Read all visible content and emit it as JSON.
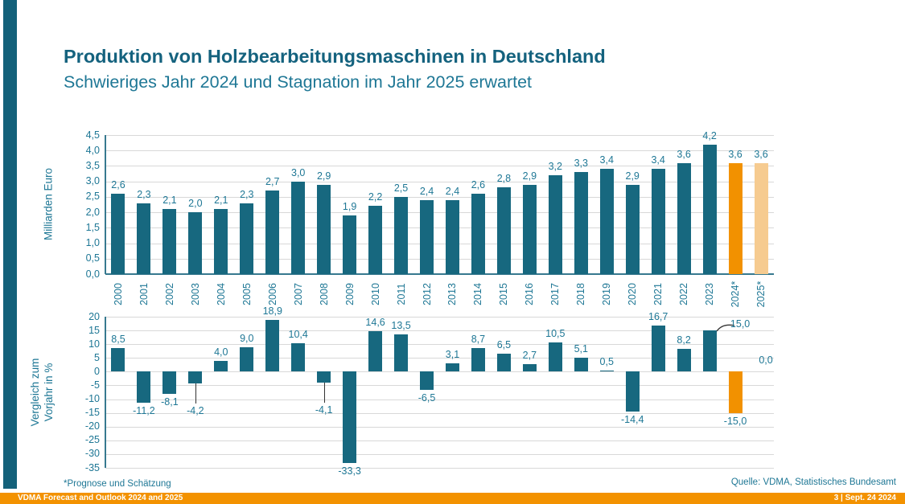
{
  "slide": {
    "title": "Produktion von Holzbearbeitungsmaschinen in Deutschland",
    "subtitle": "Schwieriges Jahr 2024 und Stagnation im Jahr 2025 erwartet",
    "footnote": "*Prognose und Schätzung",
    "source": "Quelle: VDMA, Statistisches Bundesamt"
  },
  "footer": {
    "left": "VDMA Forecast and Outlook 2024 and 2025",
    "right": "3 | Sept. 24 2024"
  },
  "colors": {
    "teal": "#17687F",
    "orange": "#F29100",
    "light_orange": "#F6CB90",
    "footer_bg": "#F39200",
    "grid": "#D8D8D8",
    "axis": "#37798F",
    "text": "#1E7795",
    "title": "#14627E",
    "stripe": "#14617A",
    "leader": "#333333"
  },
  "chart_data": [
    {
      "type": "bar",
      "title": "Produktion von Holzbearbeitungsmaschinen in Deutschland",
      "ylabel": "Milliarden Euro",
      "xlabel": "",
      "ylim": [
        0,
        4.5
      ],
      "ytick_step": 0.5,
      "ytick_labels": [
        "4,5",
        "4,0",
        "3,5",
        "3,0",
        "2,5",
        "2,0",
        "1,5",
        "1,0",
        "0,5",
        "0,0"
      ],
      "grid": true,
      "legend": false,
      "categories": [
        "2000",
        "2001",
        "2002",
        "2003",
        "2004",
        "2005",
        "2006",
        "2007",
        "2008",
        "2009",
        "2010",
        "2011",
        "2012",
        "2013",
        "2014",
        "2015",
        "2016",
        "2017",
        "2018",
        "2019",
        "2020",
        "2021",
        "2022",
        "2023",
        "2024*",
        "2025*"
      ],
      "values": [
        2.6,
        2.3,
        2.1,
        2.0,
        2.1,
        2.3,
        2.7,
        3.0,
        2.9,
        1.9,
        2.2,
        2.5,
        2.4,
        2.4,
        2.6,
        2.8,
        2.9,
        3.2,
        3.3,
        3.4,
        2.9,
        3.4,
        3.6,
        4.2,
        3.6,
        3.6
      ],
      "labels": [
        "2,6",
        "2,3",
        "2,1",
        "2,0",
        "2,1",
        "2,3",
        "2,7",
        "3,0",
        "2,9",
        "1,9",
        "2,2",
        "2,5",
        "2,4",
        "2,4",
        "2,6",
        "2,8",
        "2,9",
        "3,2",
        "3,3",
        "3,4",
        "2,9",
        "3,4",
        "3,6",
        "4,2",
        "3,6",
        "3,6"
      ],
      "bar_color_keys": [
        "teal",
        "teal",
        "teal",
        "teal",
        "teal",
        "teal",
        "teal",
        "teal",
        "teal",
        "teal",
        "teal",
        "teal",
        "teal",
        "teal",
        "teal",
        "teal",
        "teal",
        "teal",
        "teal",
        "teal",
        "teal",
        "teal",
        "teal",
        "teal",
        "orange",
        "light_orange"
      ]
    },
    {
      "type": "bar",
      "title": "",
      "ylabel": "Vergleich zum\nVorjahr in %",
      "xlabel": "",
      "ylim": [
        -35,
        20
      ],
      "ytick_step": 5,
      "ytick_labels": [
        "20",
        "15",
        "10",
        "5",
        "0",
        "-5",
        "-10",
        "-15",
        "-20",
        "-25",
        "-30",
        "-35"
      ],
      "grid": true,
      "legend": false,
      "categories": [
        "2000",
        "2001",
        "2002",
        "2003",
        "2004",
        "2005",
        "2006",
        "2007",
        "2008",
        "2009",
        "2010",
        "2011",
        "2012",
        "2013",
        "2014",
        "2015",
        "2016",
        "2017",
        "2018",
        "2019",
        "2020",
        "2021",
        "2022",
        "2023",
        "2024*",
        "2025*"
      ],
      "values": [
        8.5,
        -11.2,
        -8.1,
        -4.2,
        4.0,
        9.0,
        18.9,
        10.4,
        -4.1,
        -33.3,
        14.6,
        13.5,
        -6.5,
        3.1,
        8.7,
        6.5,
        2.7,
        10.5,
        5.1,
        0.5,
        -14.4,
        16.7,
        8.2,
        15.0,
        -15.0,
        0.0
      ],
      "labels": [
        "8,5",
        "-11,2",
        "-8,1",
        "-4,2",
        "4,0",
        "9,0",
        "18,9",
        "10,4",
        "-4,1",
        "-33,3",
        "14,6",
        "13,5",
        "-6,5",
        "3,1",
        "8,7",
        "6,5",
        "2,7",
        "10,5",
        "5,1",
        "0,5",
        "-14,4",
        "16,7",
        "8,2",
        "15,0",
        "-15,0",
        "0,0"
      ],
      "bar_color_keys": [
        "teal",
        "teal",
        "teal",
        "teal",
        "teal",
        "teal",
        "teal",
        "teal",
        "teal",
        "teal",
        "teal",
        "teal",
        "teal",
        "teal",
        "teal",
        "teal",
        "teal",
        "teal",
        "teal",
        "teal",
        "teal",
        "teal",
        "teal",
        "teal",
        "orange",
        "light_orange"
      ]
    }
  ]
}
